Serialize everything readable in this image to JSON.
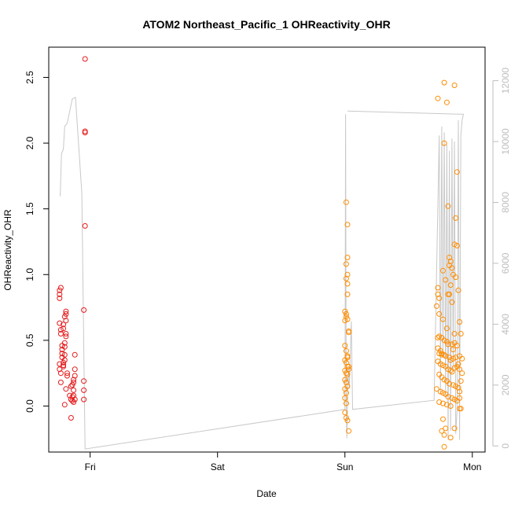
{
  "chart_data": {
    "type": "scatter",
    "title": "ATOM2 Northeast_Pacific_1 OHReactivity_OHR",
    "xlabel": "Date",
    "ylabel": "OHReactivity_OHR",
    "x_ticks": [
      {
        "label": "Fri",
        "day": 1.0
      },
      {
        "label": "Sat",
        "day": 2.0
      },
      {
        "label": "Sun",
        "day": 3.0
      },
      {
        "label": "Mon",
        "day": 4.0
      }
    ],
    "y_ticks": [
      "0.0",
      "0.5",
      "1.0",
      "1.5",
      "2.0",
      "2.5"
    ],
    "y2_ticks": [
      "0",
      "2000",
      "4000",
      "6000",
      "8000",
      "10000",
      "12000"
    ],
    "xlim_days": [
      0.675,
      4.1
    ],
    "ylim": [
      -0.35,
      2.73
    ],
    "y2lim": [
      -200,
      13100
    ],
    "grid": false,
    "colors": {
      "series_red": "#e41a1c",
      "series_orange": "#ff8c00",
      "altitude_line": "#c8c8c8",
      "right_axis": "#bdbdbd"
    },
    "series": [
      {
        "color": "red",
        "points": [
          [
            0.76,
            0.88
          ],
          [
            0.76,
            0.85
          ],
          [
            0.76,
            0.82
          ],
          [
            0.77,
            0.9
          ],
          [
            0.76,
            0.63
          ],
          [
            0.77,
            0.58
          ],
          [
            0.77,
            0.55
          ],
          [
            0.76,
            0.32
          ],
          [
            0.76,
            0.28
          ],
          [
            0.77,
            0.25
          ],
          [
            0.77,
            0.18
          ],
          [
            0.78,
            0.43
          ],
          [
            0.78,
            0.46
          ],
          [
            0.78,
            0.4
          ],
          [
            0.78,
            0.37
          ],
          [
            0.79,
            0.33
          ],
          [
            0.79,
            0.31
          ],
          [
            0.79,
            0.3
          ],
          [
            0.79,
            0.62
          ],
          [
            0.79,
            0.59
          ],
          [
            0.8,
            0.48
          ],
          [
            0.8,
            0.45
          ],
          [
            0.8,
            0.39
          ],
          [
            0.8,
            0.35
          ],
          [
            0.8,
            0.68
          ],
          [
            0.81,
            0.72
          ],
          [
            0.81,
            0.7
          ],
          [
            0.81,
            0.65
          ],
          [
            0.81,
            0.55
          ],
          [
            0.81,
            0.53
          ],
          [
            0.82,
            0.25
          ],
          [
            0.82,
            0.23
          ],
          [
            0.81,
            0.13
          ],
          [
            0.8,
            0.01
          ],
          [
            0.84,
            0.08
          ],
          [
            0.85,
            0.05
          ],
          [
            0.86,
            0.07
          ],
          [
            0.86,
            0.04
          ],
          [
            0.86,
            0.16
          ],
          [
            0.87,
            0.12
          ],
          [
            0.87,
            0.18
          ],
          [
            0.87,
            0.2
          ],
          [
            0.88,
            0.23
          ],
          [
            0.88,
            0.28
          ],
          [
            0.88,
            0.39
          ],
          [
            0.88,
            0.05
          ],
          [
            0.85,
            -0.09
          ],
          [
            0.87,
            0.03
          ],
          [
            0.87,
            0.08
          ],
          [
            0.85,
            0.15
          ],
          [
            0.96,
            2.64
          ],
          [
            0.96,
            2.09
          ],
          [
            0.96,
            2.08
          ],
          [
            0.96,
            1.37
          ],
          [
            0.95,
            0.73
          ],
          [
            0.95,
            0.19
          ],
          [
            0.95,
            0.12
          ],
          [
            0.95,
            0.05
          ]
        ]
      },
      {
        "color": "orange",
        "points": [
          [
            3.01,
            1.55
          ],
          [
            3.02,
            1.38
          ],
          [
            3.02,
            1.13
          ],
          [
            3.01,
            1.08
          ],
          [
            3.02,
            1.0
          ],
          [
            3.01,
            0.97
          ],
          [
            3.02,
            0.93
          ],
          [
            3.02,
            0.85
          ],
          [
            3.0,
            0.72
          ],
          [
            3.01,
            0.7
          ],
          [
            3.01,
            0.68
          ],
          [
            3.02,
            0.66
          ],
          [
            3.0,
            0.65
          ],
          [
            3.03,
            0.57
          ],
          [
            3.03,
            0.56
          ],
          [
            3.0,
            0.46
          ],
          [
            3.01,
            0.42
          ],
          [
            3.02,
            0.37
          ],
          [
            3.0,
            0.35
          ],
          [
            3.01,
            0.33
          ],
          [
            3.02,
            0.3
          ],
          [
            3.03,
            0.28
          ],
          [
            3.0,
            0.27
          ],
          [
            3.01,
            0.25
          ],
          [
            3.02,
            0.24
          ],
          [
            3.0,
            0.2
          ],
          [
            3.01,
            0.18
          ],
          [
            3.02,
            0.15
          ],
          [
            3.0,
            0.13
          ],
          [
            3.01,
            0.1
          ],
          [
            3.0,
            0.06
          ],
          [
            3.01,
            0.02
          ],
          [
            3.0,
            -0.05
          ],
          [
            3.01,
            -0.09
          ],
          [
            3.02,
            -0.11
          ],
          [
            3.03,
            -0.19
          ],
          [
            3.02,
            0.38
          ],
          [
            3.03,
            0.3
          ],
          [
            3.73,
            2.34
          ],
          [
            3.78,
            2.46
          ],
          [
            3.8,
            2.31
          ],
          [
            3.86,
            2.44
          ],
          [
            3.78,
            2.0
          ],
          [
            3.88,
            1.78
          ],
          [
            3.81,
            1.52
          ],
          [
            3.87,
            1.43
          ],
          [
            3.86,
            1.23
          ],
          [
            3.88,
            1.22
          ],
          [
            3.82,
            1.13
          ],
          [
            3.83,
            1.1
          ],
          [
            3.82,
            1.07
          ],
          [
            3.84,
            1.05
          ],
          [
            3.77,
            1.03
          ],
          [
            3.85,
            1.0
          ],
          [
            3.87,
            0.98
          ],
          [
            3.73,
            0.9
          ],
          [
            3.73,
            0.85
          ],
          [
            3.74,
            0.82
          ],
          [
            3.79,
            0.96
          ],
          [
            3.83,
            0.92
          ],
          [
            3.89,
            0.88
          ],
          [
            3.82,
            0.85
          ],
          [
            3.81,
            0.85
          ],
          [
            3.84,
            0.79
          ],
          [
            3.72,
            0.76
          ],
          [
            3.74,
            0.7
          ],
          [
            3.77,
            0.66
          ],
          [
            3.9,
            0.64
          ],
          [
            3.8,
            0.59
          ],
          [
            3.86,
            0.55
          ],
          [
            3.91,
            0.55
          ],
          [
            3.73,
            0.52
          ],
          [
            3.74,
            0.53
          ],
          [
            3.76,
            0.52
          ],
          [
            3.78,
            0.5
          ],
          [
            3.8,
            0.49
          ],
          [
            3.81,
            0.47
          ],
          [
            3.84,
            0.47
          ],
          [
            3.86,
            0.48
          ],
          [
            3.88,
            0.46
          ],
          [
            3.73,
            0.44
          ],
          [
            3.75,
            0.42
          ],
          [
            3.76,
            0.4
          ],
          [
            3.78,
            0.39
          ],
          [
            3.79,
            0.38
          ],
          [
            3.82,
            0.37
          ],
          [
            3.83,
            0.35
          ],
          [
            3.85,
            0.36
          ],
          [
            3.87,
            0.37
          ],
          [
            3.9,
            0.38
          ],
          [
            3.92,
            0.36
          ],
          [
            3.73,
            0.34
          ],
          [
            3.75,
            0.32
          ],
          [
            3.77,
            0.31
          ],
          [
            3.79,
            0.3
          ],
          [
            3.81,
            0.28
          ],
          [
            3.83,
            0.27
          ],
          [
            3.84,
            0.26
          ],
          [
            3.86,
            0.29
          ],
          [
            3.88,
            0.3
          ],
          [
            3.9,
            0.28
          ],
          [
            3.74,
            0.24
          ],
          [
            3.76,
            0.22
          ],
          [
            3.78,
            0.2
          ],
          [
            3.8,
            0.19
          ],
          [
            3.82,
            0.17
          ],
          [
            3.85,
            0.16
          ],
          [
            3.87,
            0.15
          ],
          [
            3.89,
            0.14
          ],
          [
            3.91,
            0.19
          ],
          [
            3.72,
            0.13
          ],
          [
            3.75,
            0.11
          ],
          [
            3.77,
            0.1
          ],
          [
            3.79,
            0.09
          ],
          [
            3.81,
            0.07
          ],
          [
            3.84,
            0.06
          ],
          [
            3.86,
            0.05
          ],
          [
            3.88,
            0.04
          ],
          [
            3.9,
            0.06
          ],
          [
            3.74,
            0.03
          ],
          [
            3.77,
            0.02
          ],
          [
            3.8,
            0.01
          ],
          [
            3.83,
            0.0
          ],
          [
            3.9,
            -0.02
          ],
          [
            3.91,
            -0.02
          ],
          [
            3.77,
            -0.1
          ],
          [
            3.79,
            -0.17
          ],
          [
            3.78,
            -0.22
          ],
          [
            3.76,
            -0.19
          ],
          [
            3.83,
            -0.24
          ],
          [
            3.86,
            -0.17
          ],
          [
            3.78,
            -0.31
          ],
          [
            3.74,
            0.4
          ],
          [
            3.76,
            0.39
          ],
          [
            3.85,
            0.43
          ],
          [
            3.89,
            0.32
          ],
          [
            3.92,
            0.25
          ],
          [
            3.9,
            0.11
          ]
        ]
      },
      {
        "color": "altitude",
        "axis": "right",
        "points": [
          [
            0.765,
            8200
          ],
          [
            0.775,
            9600
          ],
          [
            0.79,
            9750
          ],
          [
            0.8,
            10500
          ],
          [
            0.82,
            10600
          ],
          [
            0.84,
            11000
          ],
          [
            0.86,
            11400
          ],
          [
            0.885,
            11450
          ],
          [
            0.935,
            8300
          ],
          [
            0.96,
            -100
          ],
          [
            3.0,
            1200
          ],
          [
            3.005,
            10900
          ],
          [
            3.01,
            1200
          ],
          [
            3.015,
            250
          ],
          [
            3.02,
            1400
          ],
          [
            3.025,
            2300
          ],
          [
            3.03,
            2600
          ],
          [
            3.035,
            1900
          ],
          [
            3.04,
            2700
          ],
          [
            3.05,
            4100
          ],
          [
            3.055,
            2600
          ],
          [
            3.06,
            1200
          ],
          [
            3.7,
            1500
          ],
          [
            3.74,
            10200
          ],
          [
            3.75,
            1700
          ],
          [
            3.76,
            10500
          ],
          [
            3.77,
            2900
          ],
          [
            3.78,
            10300
          ],
          [
            3.79,
            1600
          ],
          [
            3.8,
            9900
          ],
          [
            3.81,
            200
          ],
          [
            3.82,
            9700
          ],
          [
            3.83,
            500
          ],
          [
            3.84,
            10100
          ],
          [
            3.85,
            2500
          ],
          [
            3.86,
            10000
          ],
          [
            3.87,
            400
          ],
          [
            3.88,
            1200
          ],
          [
            3.89,
            10700
          ],
          [
            3.9,
            200
          ],
          [
            3.91,
            10200
          ],
          [
            3.92,
            10700
          ],
          [
            3.93,
            10900
          ],
          [
            3.9,
            10900
          ],
          [
            3.02,
            11000
          ]
        ]
      }
    ]
  }
}
